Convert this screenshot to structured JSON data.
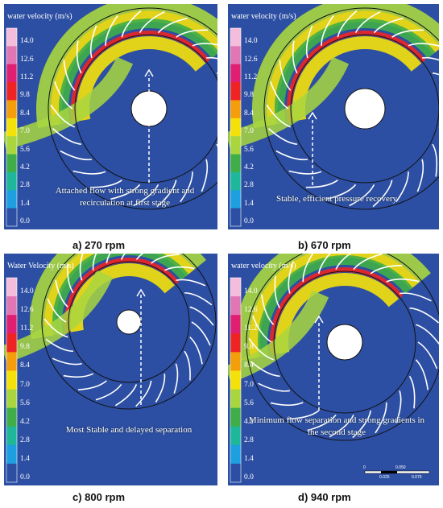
{
  "panels": [
    {
      "legend_title": "water velocity (m/s)",
      "legend_ticks": [
        "14.0",
        "12.6",
        "11.2",
        "9.8",
        "8.4",
        "7.0",
        "5.6",
        "4.2",
        "2.8",
        "1.4",
        "0.0"
      ],
      "annotation": "Attached flow with strong gradient and recirculation at first stage",
      "caption": "a)  270 rpm"
    },
    {
      "legend_title": "water velocity (m/s)",
      "legend_ticks": [
        "14.0",
        "12.6",
        "11.2",
        "9.8",
        "8.4",
        "7.0",
        "5.6",
        "4.2",
        "2.8",
        "1.4",
        "0.0"
      ],
      "annotation": "Stable, efficient pressure recovery",
      "caption": "b)  670 rpm"
    },
    {
      "legend_title": "Water Velocity (m/s)",
      "legend_ticks": [
        "14.0",
        "12.6",
        "11.2",
        "9.8",
        "8.4",
        "7.0",
        "5.6",
        "4.2",
        "2.8",
        "1.4",
        "0.0"
      ],
      "annotation": "Most Stable and delayed separation",
      "caption": "c)  800 rpm"
    },
    {
      "legend_title": "water velocity (m/s)",
      "legend_ticks": [
        "14.0",
        "12.6",
        "11.2",
        "9.8",
        "8.4",
        "7.0",
        "5.6",
        "4.2",
        "2.8",
        "1.4",
        "0.0"
      ],
      "annotation": "Minimum flow separation and strong gradients in the second stage",
      "caption": "d)  940 rpm",
      "scale_bar": [
        "0",
        "0.050",
        "0.025",
        "0.075"
      ]
    }
  ]
}
